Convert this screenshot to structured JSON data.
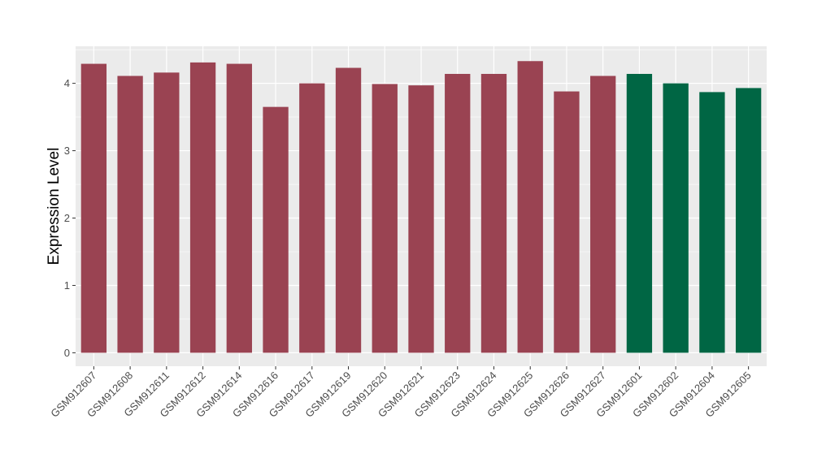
{
  "chart_data": {
    "type": "bar",
    "title": "",
    "xlabel": "",
    "ylabel": "Expression Level",
    "ylim": [
      -0.2,
      4.55
    ],
    "yticks": [
      0,
      1,
      2,
      3,
      4
    ],
    "grid": true,
    "legend": "none",
    "background_color": "#ebebeb",
    "gridline_color": "#ffffff",
    "categories": [
      "GSM912607",
      "GSM912608",
      "GSM912611",
      "GSM912612",
      "GSM912614",
      "GSM912616",
      "GSM912617",
      "GSM912619",
      "GSM912620",
      "GSM912621",
      "GSM912623",
      "GSM912624",
      "GSM912625",
      "GSM912626",
      "GSM912627",
      "GSM912601",
      "GSM912602",
      "GSM912604",
      "GSM912605"
    ],
    "values": [
      4.29,
      4.11,
      4.16,
      4.31,
      4.29,
      3.65,
      4.0,
      4.23,
      3.99,
      3.97,
      4.14,
      4.14,
      4.33,
      3.88,
      4.11,
      4.14,
      4.0,
      3.87,
      3.93
    ],
    "colors": [
      "#9a4352",
      "#9a4352",
      "#9a4352",
      "#9a4352",
      "#9a4352",
      "#9a4352",
      "#9a4352",
      "#9a4352",
      "#9a4352",
      "#9a4352",
      "#9a4352",
      "#9a4352",
      "#9a4352",
      "#9a4352",
      "#9a4352",
      "#006644",
      "#006644",
      "#006644",
      "#006644"
    ]
  }
}
